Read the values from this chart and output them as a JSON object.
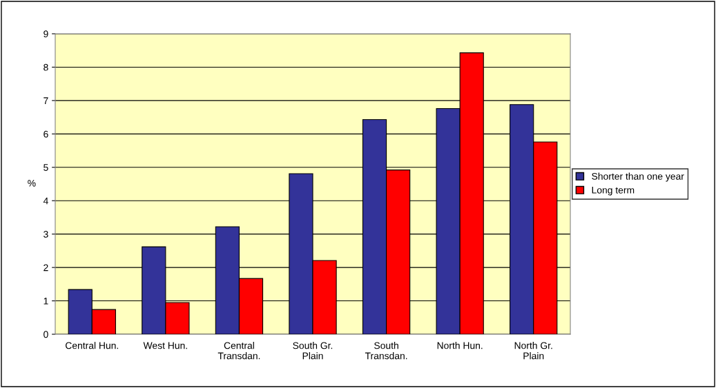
{
  "chart_data": {
    "type": "bar",
    "ylabel": "%",
    "categories": [
      "Central Hun.",
      "West Hun.",
      "Central\nTransdan.",
      "South Gr.\nPlain",
      "South\nTransdan.",
      "North Hun.",
      "North Gr.\nPlain"
    ],
    "series": [
      {
        "name": "Shorter than one year",
        "color": "#333399",
        "values": [
          1.34,
          2.62,
          3.22,
          4.81,
          6.43,
          6.76,
          6.88
        ]
      },
      {
        "name": "Long term",
        "color": "#ff0000",
        "values": [
          0.74,
          0.95,
          1.67,
          2.21,
          4.92,
          8.43,
          5.76
        ]
      }
    ],
    "ylim": [
      0,
      9
    ],
    "yticks": [
      0,
      1,
      2,
      3,
      4,
      5,
      6,
      7,
      8,
      9
    ],
    "grid": "y",
    "legend": "right"
  }
}
